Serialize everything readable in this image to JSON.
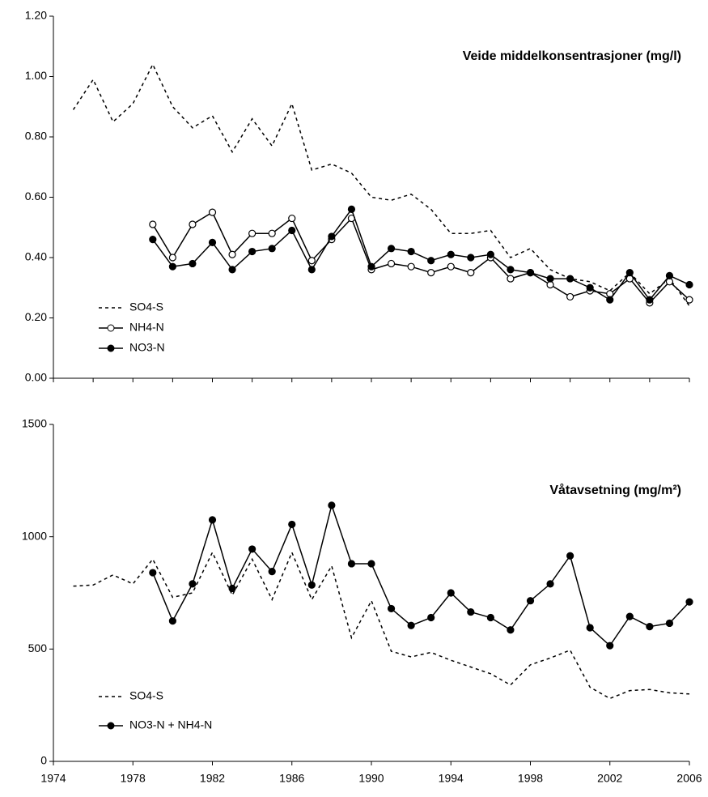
{
  "chart_data": [
    {
      "type": "line",
      "title": "Veide middelkonsentrasjoner (mg/l)",
      "x": [
        1975,
        1976,
        1977,
        1978,
        1979,
        1980,
        1981,
        1982,
        1983,
        1984,
        1985,
        1986,
        1987,
        1988,
        1989,
        1990,
        1991,
        1992,
        1993,
        1994,
        1995,
        1996,
        1997,
        1998,
        1999,
        2000,
        2001,
        2002,
        2003,
        2004,
        2005,
        2006
      ],
      "series": [
        {
          "name": "SO4-S",
          "color": "#000000",
          "style": "dashed",
          "marker": "none",
          "values": [
            0.89,
            0.99,
            0.85,
            0.91,
            1.04,
            0.9,
            0.83,
            0.87,
            0.75,
            0.86,
            0.77,
            0.91,
            0.69,
            0.71,
            0.68,
            0.6,
            0.59,
            0.61,
            0.56,
            0.48,
            0.48,
            0.49,
            0.4,
            0.43,
            0.36,
            0.33,
            0.32,
            0.29,
            0.35,
            0.28,
            0.33,
            0.24
          ]
        },
        {
          "name": "NH4-N",
          "color": "#000000",
          "style": "solid",
          "marker": "open-circle",
          "values": [
            null,
            null,
            null,
            null,
            0.51,
            0.4,
            0.51,
            0.55,
            0.41,
            0.48,
            0.48,
            0.53,
            0.39,
            0.46,
            0.53,
            0.36,
            0.38,
            0.37,
            0.35,
            0.37,
            0.35,
            0.4,
            0.33,
            0.35,
            0.31,
            0.27,
            0.29,
            0.28,
            0.33,
            0.25,
            0.32,
            0.26
          ]
        },
        {
          "name": "NO3-N",
          "color": "#000000",
          "style": "solid",
          "marker": "filled-circle",
          "values": [
            null,
            null,
            null,
            null,
            0.46,
            0.37,
            0.38,
            0.45,
            0.36,
            0.42,
            0.43,
            0.49,
            0.36,
            0.47,
            0.56,
            0.37,
            0.43,
            0.42,
            0.39,
            0.41,
            0.4,
            0.41,
            0.36,
            0.35,
            0.33,
            0.33,
            0.3,
            0.26,
            0.35,
            0.26,
            0.34,
            0.31
          ]
        }
      ],
      "xlim": [
        1974,
        2006
      ],
      "xticks": [
        1974,
        1976,
        1978,
        1980,
        1982,
        1984,
        1986,
        1988,
        1990,
        1992,
        1994,
        1996,
        1998,
        2000,
        2002,
        2004,
        2006
      ],
      "ylim": [
        0,
        1.2
      ],
      "yticks": [
        {
          "value": 0,
          "label": "0.00"
        },
        {
          "value": 0.2,
          "label": "0.20"
        },
        {
          "value": 0.4,
          "label": "0.40"
        },
        {
          "value": 0.6,
          "label": "0.60"
        },
        {
          "value": 0.8,
          "label": "0.80"
        },
        {
          "value": 1.0,
          "label": "1.00"
        },
        {
          "value": 1.2,
          "label": "1.20"
        }
      ],
      "legend": "lower left"
    },
    {
      "type": "line",
      "title": "Våtavsetning (mg/m²)",
      "x": [
        1975,
        1976,
        1977,
        1978,
        1979,
        1980,
        1981,
        1982,
        1983,
        1984,
        1985,
        1986,
        1987,
        1988,
        1989,
        1990,
        1991,
        1992,
        1993,
        1994,
        1995,
        1996,
        1997,
        1998,
        1999,
        2000,
        2001,
        2002,
        2003,
        2004,
        2005,
        2006
      ],
      "series": [
        {
          "name": "SO4-S",
          "color": "#000000",
          "style": "dashed",
          "marker": "none",
          "values": [
            780,
            785,
            830,
            790,
            900,
            730,
            750,
            930,
            740,
            900,
            720,
            930,
            720,
            870,
            550,
            715,
            490,
            465,
            485,
            450,
            420,
            390,
            340,
            430,
            460,
            495,
            330,
            280,
            315,
            320,
            305,
            300
          ]
        },
        {
          "name": "NO3-N + NH4-N",
          "color": "#000000",
          "style": "solid",
          "marker": "filled-circle",
          "values": [
            null,
            null,
            null,
            null,
            840,
            625,
            790,
            1075,
            770,
            945,
            845,
            1055,
            785,
            1140,
            880,
            880,
            680,
            605,
            640,
            750,
            665,
            640,
            585,
            715,
            790,
            915,
            595,
            515,
            645,
            600,
            615,
            710
          ]
        }
      ],
      "xlim": [
        1974,
        2006
      ],
      "xticks": [
        1974,
        1978,
        1982,
        1986,
        1990,
        1994,
        1998,
        2002,
        2006
      ],
      "ylim": [
        0,
        1500
      ],
      "yticks": [
        0,
        500,
        1000,
        1500
      ],
      "legend": "lower left"
    }
  ]
}
